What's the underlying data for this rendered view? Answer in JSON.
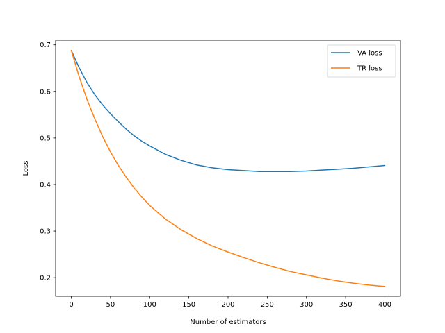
{
  "chart_data": {
    "type": "line",
    "title": "",
    "xlabel": "Number of estimators",
    "ylabel": "Loss",
    "xlim": [
      -20,
      420
    ],
    "ylim": [
      0.16,
      0.71
    ],
    "xticks": [
      0,
      50,
      100,
      150,
      200,
      250,
      300,
      350,
      400
    ],
    "yticks": [
      0.2,
      0.3,
      0.4,
      0.5,
      0.6,
      0.7
    ],
    "grid": false,
    "legend": "top-right",
    "series": [
      {
        "name": "VA loss",
        "color": "#1f77b4",
        "x": [
          0,
          10,
          20,
          30,
          40,
          50,
          60,
          70,
          80,
          90,
          100,
          120,
          140,
          160,
          180,
          200,
          220,
          240,
          260,
          280,
          300,
          320,
          340,
          360,
          380,
          400
        ],
        "y": [
          0.688,
          0.651,
          0.619,
          0.593,
          0.571,
          0.552,
          0.535,
          0.519,
          0.505,
          0.493,
          0.483,
          0.465,
          0.452,
          0.442,
          0.436,
          0.432,
          0.43,
          0.428,
          0.428,
          0.428,
          0.429,
          0.431,
          0.433,
          0.435,
          0.438,
          0.441
        ]
      },
      {
        "name": "TR loss",
        "color": "#ff7f0e",
        "x": [
          0,
          10,
          20,
          30,
          40,
          50,
          60,
          70,
          80,
          90,
          100,
          120,
          140,
          160,
          180,
          200,
          220,
          240,
          260,
          280,
          300,
          320,
          340,
          360,
          380,
          400
        ],
        "y": [
          0.688,
          0.632,
          0.583,
          0.541,
          0.503,
          0.47,
          0.441,
          0.416,
          0.393,
          0.373,
          0.355,
          0.326,
          0.303,
          0.284,
          0.268,
          0.255,
          0.243,
          0.232,
          0.222,
          0.213,
          0.206,
          0.199,
          0.193,
          0.188,
          0.184,
          0.181
        ]
      }
    ]
  }
}
